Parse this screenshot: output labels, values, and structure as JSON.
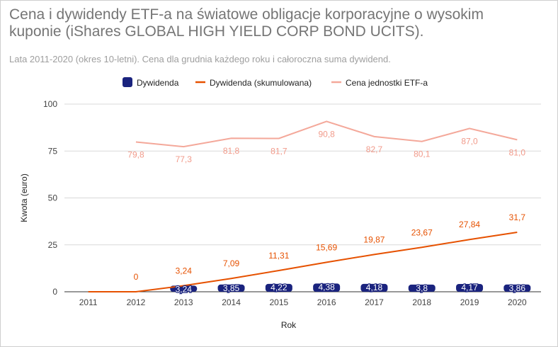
{
  "chart_data": {
    "type": "bar",
    "title": "Cena i dywidendy ETF-a na światowe obligacje korporacyjne o wysokim kuponie (iShares GLOBAL HIGH YIELD CORP BOND UCITS).",
    "subtitle": "Lata 2011-2020 (okres 10-letni). Cena dla grudnia każdego roku i całoroczna suma dywidend.",
    "xlabel": "Rok",
    "ylabel": "Kwota (euro)",
    "ylim": [
      0,
      100
    ],
    "yticks": [
      "0",
      "25",
      "50",
      "75",
      "100"
    ],
    "ytick_values": [
      0,
      25,
      50,
      75,
      100
    ],
    "grid": true,
    "legend": "top",
    "categories": [
      "2011",
      "2012",
      "2013",
      "2014",
      "2015",
      "2016",
      "2017",
      "2018",
      "2019",
      "2020"
    ],
    "series": [
      {
        "name": "Dywidenda",
        "kind": "bar",
        "color": "#1a237e",
        "values": [
          null,
          null,
          3.24,
          3.85,
          4.22,
          4.38,
          4.18,
          3.8,
          4.17,
          3.86
        ],
        "labels": [
          "",
          "",
          "3,24",
          "3,85",
          "4,22",
          "4,38",
          "4,18",
          "3,8",
          "4,17",
          "3,86"
        ]
      },
      {
        "name": "Dywidenda (skumulowana)",
        "kind": "line",
        "color": "#e65100",
        "values": [
          0,
          0,
          3.24,
          7.09,
          11.31,
          15.69,
          19.87,
          23.67,
          27.84,
          31.7
        ],
        "labels": [
          "",
          "0",
          "3,24",
          "7,09",
          "11,31",
          "15,69",
          "19,87",
          "23,67",
          "27,84",
          "31,7"
        ]
      },
      {
        "name": "Cena jednostki ETF-a",
        "kind": "line",
        "color": "#f4a89a",
        "values": [
          null,
          79.8,
          77.3,
          81.8,
          81.7,
          90.8,
          82.7,
          80.1,
          87.0,
          81.0
        ],
        "labels": [
          "",
          "79,8",
          "77,3",
          "81,8",
          "81,7",
          "90,8",
          "82,7",
          "80,1",
          "87,0",
          "81,0"
        ]
      }
    ]
  }
}
